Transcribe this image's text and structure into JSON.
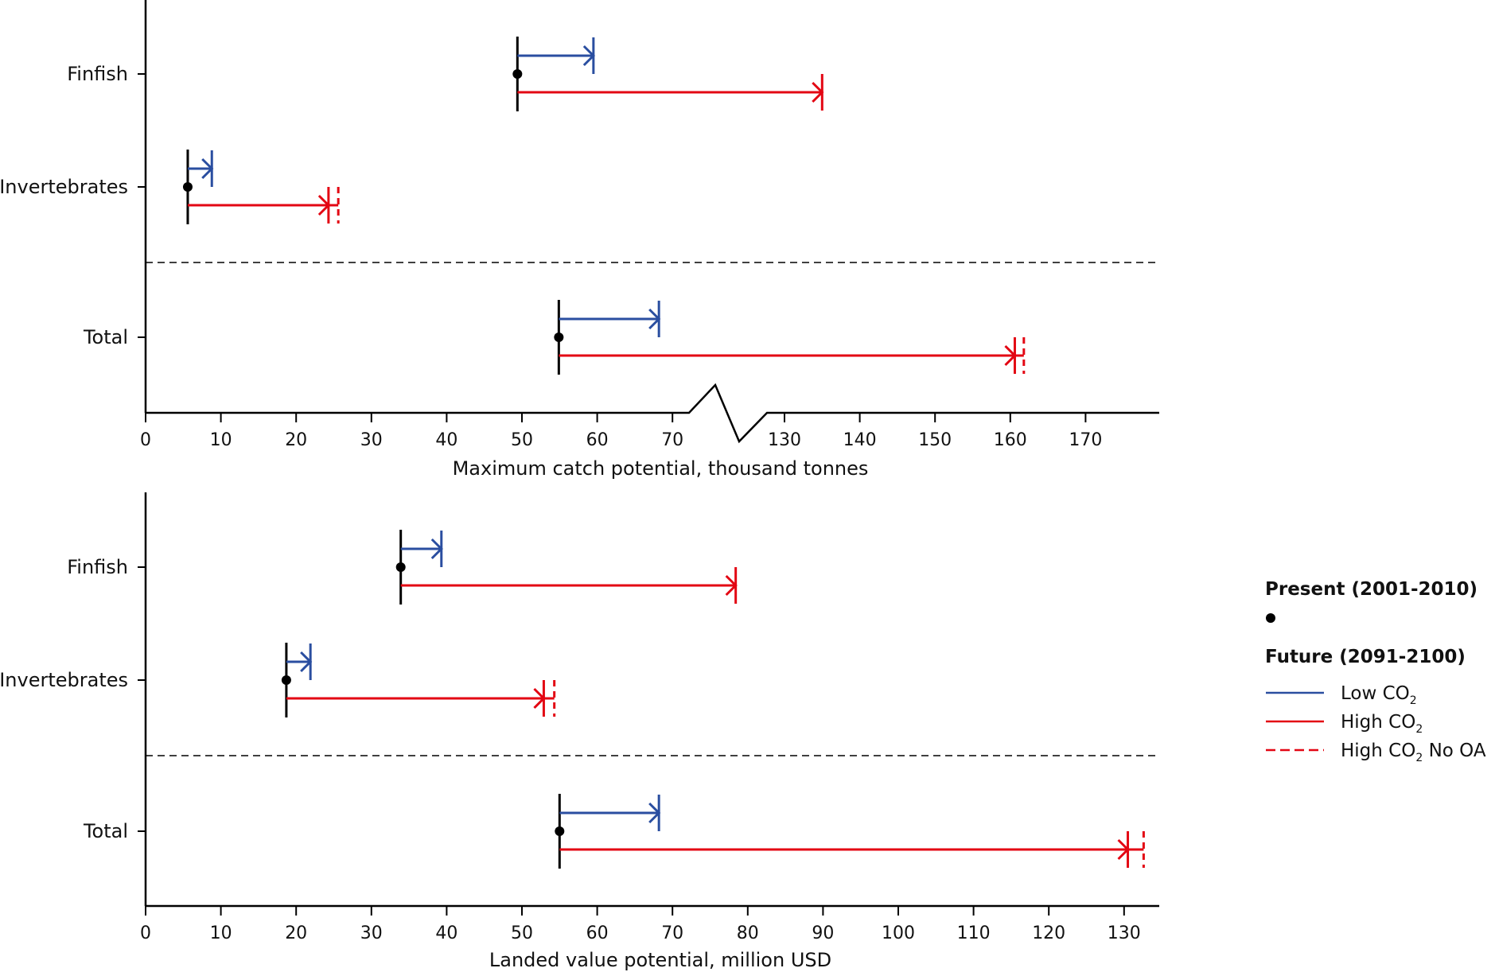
{
  "chart_data": [
    {
      "type": "range-arrow",
      "title": "",
      "xlabel": "Maximum catch potential, thousand tonnes",
      "ylabel": "",
      "x_ticks": [
        0,
        10,
        20,
        30,
        40,
        50,
        60,
        70,
        130,
        140,
        150,
        160,
        170
      ],
      "axis_break": {
        "from": 70,
        "to": 130
      },
      "xlim": [
        0,
        171.5
      ],
      "categories": [
        "Finfish",
        "Invertebrates",
        "Total"
      ],
      "separator_after": "Invertebrates",
      "present": [
        49.4,
        5.6,
        54.9
      ],
      "series": [
        {
          "name": "Low CO2",
          "values": [
            59.5,
            8.8,
            68.2
          ]
        },
        {
          "name": "High CO2",
          "values": [
            135.0,
            24.3,
            160.6
          ]
        },
        {
          "name": "High CO2 No OA",
          "values": [
            null,
            25.6,
            161.8
          ]
        }
      ]
    },
    {
      "type": "range-arrow",
      "title": "",
      "xlabel": "Landed value potential, million USD",
      "ylabel": "",
      "x_ticks": [
        0,
        10,
        20,
        30,
        40,
        50,
        60,
        70,
        80,
        90,
        100,
        110,
        120,
        130
      ],
      "axis_break": null,
      "xlim": [
        0,
        134
      ],
      "categories": [
        "Finfish",
        "Invertebrates",
        "Total"
      ],
      "separator_after": "Invertebrates",
      "present": [
        33.9,
        18.7,
        55.0
      ],
      "series": [
        {
          "name": "Low CO2",
          "values": [
            39.3,
            21.9,
            68.2
          ]
        },
        {
          "name": "High CO2",
          "values": [
            78.4,
            52.9,
            130.5
          ]
        },
        {
          "name": "High CO2 No OA",
          "values": [
            null,
            54.3,
            132.6
          ]
        }
      ]
    }
  ],
  "legend": {
    "present_title": "Present (2001-2010)",
    "future_title": "Future (2091-2100)",
    "items": [
      {
        "label": "Low CO",
        "sub": "2",
        "suffix": "",
        "color": "#2a4ea0",
        "style": "solid"
      },
      {
        "label": "High CO",
        "sub": "2",
        "suffix": "",
        "color": "#e30613",
        "style": "solid"
      },
      {
        "label": "High CO",
        "sub": "2",
        "suffix": " No OA",
        "color": "#e30613",
        "style": "dashed"
      }
    ]
  },
  "colors": {
    "low": "#2a4ea0",
    "high": "#e30613",
    "present": "#000000"
  }
}
